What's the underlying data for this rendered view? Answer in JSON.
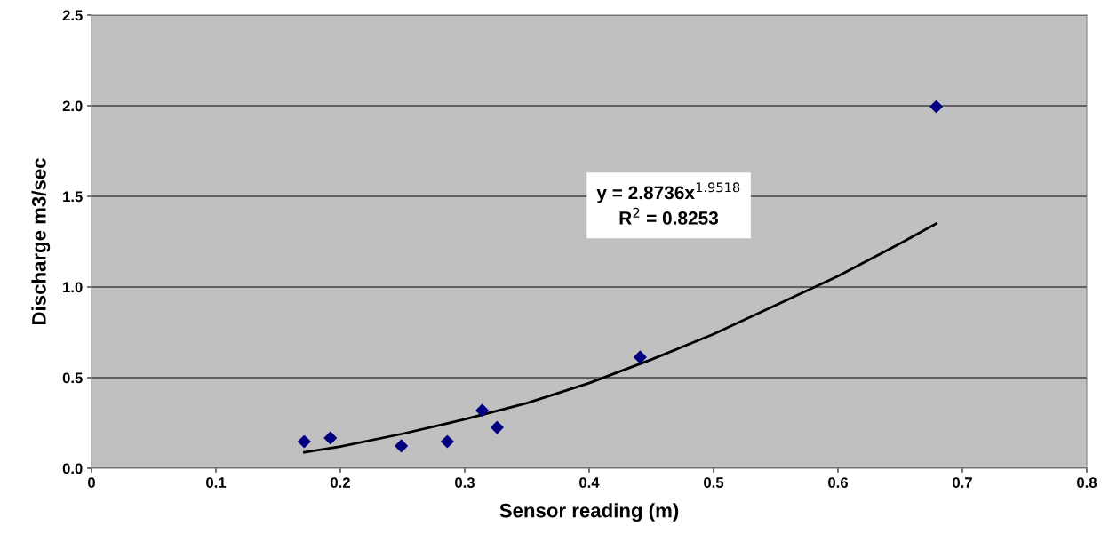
{
  "chart_data": {
    "type": "scatter",
    "xlabel": "Sensor reading (m)",
    "ylabel": "Discharge m3/sec",
    "annotations": [
      "y = 2.8736x$^{1.9518}$",
      "R$^{2}$ = 0.8253"
    ],
    "series": [
      {
        "color": "#000080",
        "marker": "diamond",
        "x": [
          0.171,
          0.192,
          0.249,
          0.286,
          0.314,
          0.326,
          0.441,
          0.679
        ],
        "values": [
          0.147,
          0.167,
          0.123,
          0.147,
          0.319,
          0.225,
          0.613,
          1.995
        ]
      },
      {
        "type": "line",
        "color": "#000000",
        "marker": "none",
        "line_style": "solid",
        "x": [
          0.171,
          0.2,
          0.25,
          0.3,
          0.35,
          0.4,
          0.45,
          0.5,
          0.55,
          0.6,
          0.65,
          0.679
        ],
        "values": [
          0.088,
          0.12,
          0.19,
          0.27,
          0.36,
          0.47,
          0.6,
          0.74,
          0.9,
          1.06,
          1.24,
          1.35
        ]
      }
    ],
    "xlim": [
      0,
      0.8
    ],
    "xticks": [
      0,
      0.1,
      0.2,
      0.3,
      0.4,
      0.5,
      0.6,
      0.7,
      0.8
    ],
    "ylim": [
      0,
      2.5
    ],
    "yticks": [
      {
        "value": 0,
        "label": "0.0"
      },
      {
        "value": 0.5,
        "label": "0.5"
      },
      {
        "value": 1,
        "label": "1.0"
      },
      {
        "value": 1.5,
        "label": "1.5"
      },
      {
        "value": 2,
        "label": "2.0"
      },
      {
        "value": 2.5,
        "label": "2.5"
      }
    ],
    "grid": "y"
  }
}
